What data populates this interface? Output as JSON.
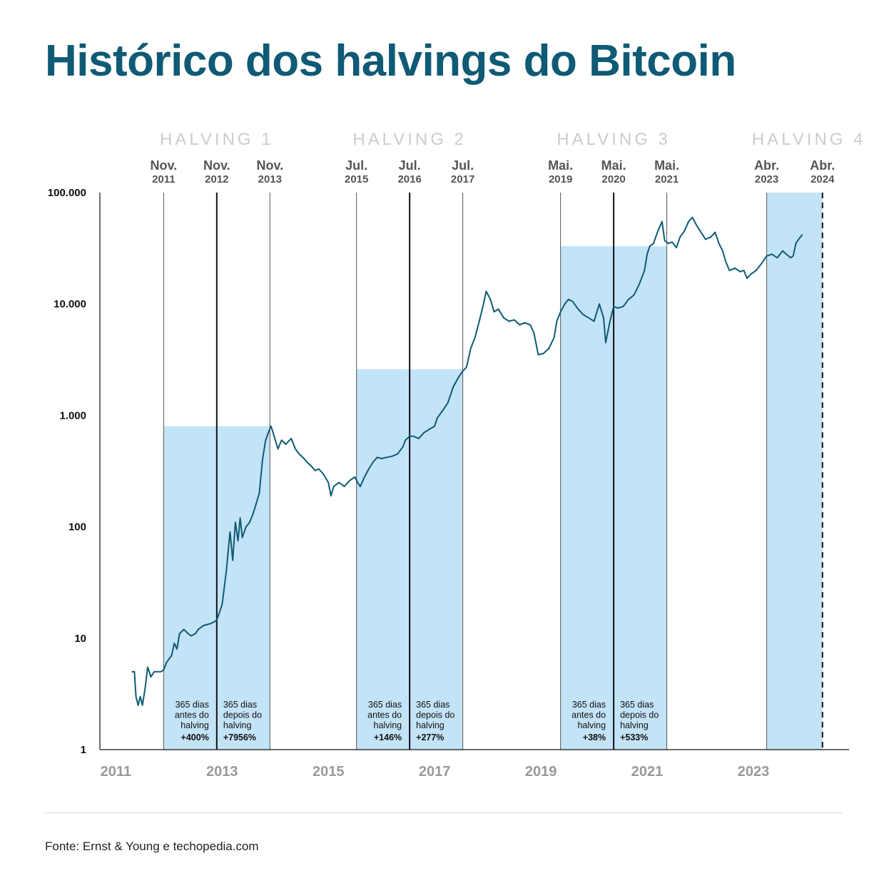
{
  "title": "Histórico dos halvings do Bitcoin",
  "source": "Fonte: Ernst & Young e techopedia.com",
  "chart_data": {
    "type": "line",
    "title": "Histórico dos halvings do Bitcoin",
    "xlabel": "",
    "ylabel": "",
    "yscale": "log",
    "ylim": [
      1,
      100000
    ],
    "xlim": [
      2010.7,
      2024.8
    ],
    "grid": false,
    "y_ticks": [
      {
        "value": 1,
        "label": "1"
      },
      {
        "value": 10,
        "label": "10"
      },
      {
        "value": 100,
        "label": "100"
      },
      {
        "value": 1000,
        "label": "1.000"
      },
      {
        "value": 10000,
        "label": "10.000"
      },
      {
        "value": 100000,
        "label": "100.000"
      }
    ],
    "x_ticks": [
      {
        "value": 2011,
        "label": "2011"
      },
      {
        "value": 2013,
        "label": "2013"
      },
      {
        "value": 2015,
        "label": "2015"
      },
      {
        "value": 2017,
        "label": "2017"
      },
      {
        "value": 2019,
        "label": "2019"
      },
      {
        "value": 2021,
        "label": "2021"
      },
      {
        "value": 2023,
        "label": "2023"
      }
    ],
    "halvings": [
      {
        "name": "HALVING 1",
        "date": 2012.9,
        "start": 2011.9,
        "end": 2013.9,
        "box_top": 800,
        "markers": [
          {
            "month": "Nov.",
            "year": "2011",
            "value": 2011.9
          },
          {
            "month": "Nov.",
            "year": "2012",
            "value": 2012.9
          },
          {
            "month": "Nov.",
            "year": "2013",
            "value": 2013.9
          }
        ],
        "before": {
          "text": [
            "365 dias",
            "antes do",
            "halving"
          ],
          "change": "+400%"
        },
        "after": {
          "text": [
            "365 dias",
            "depois do",
            "halving"
          ],
          "change": "+7956%"
        }
      },
      {
        "name": "HALVING 2",
        "date": 2016.53,
        "start": 2015.53,
        "end": 2017.53,
        "box_top": 2600,
        "markers": [
          {
            "month": "Jul.",
            "year": "2015",
            "value": 2015.53
          },
          {
            "month": "Jul.",
            "year": "2016",
            "value": 2016.53
          },
          {
            "month": "Jul.",
            "year": "2017",
            "value": 2017.53
          }
        ],
        "before": {
          "text": [
            "365 dias",
            "antes do",
            "halving"
          ],
          "change": "+146%"
        },
        "after": {
          "text": [
            "365 dias",
            "depois do",
            "halving"
          ],
          "change": "+277%"
        }
      },
      {
        "name": "HALVING 3",
        "date": 2020.37,
        "start": 2019.37,
        "end": 2021.37,
        "box_top": 33000,
        "markers": [
          {
            "month": "Mai.",
            "year": "2019",
            "value": 2019.37
          },
          {
            "month": "Mai.",
            "year": "2020",
            "value": 2020.37
          },
          {
            "month": "Mai.",
            "year": "2021",
            "value": 2021.37
          }
        ],
        "before": {
          "text": [
            "365 dias",
            "antes do",
            "halving"
          ],
          "change": "+38%"
        },
        "after": {
          "text": [
            "365 dias",
            "depois do",
            "halving"
          ],
          "change": "+533%"
        }
      },
      {
        "name": "HALVING 4",
        "date": 2024.3,
        "start": 2023.25,
        "end": 2024.3,
        "box_top": 100000,
        "markers": [
          {
            "month": "Abr.",
            "year": "2023",
            "value": 2023.25
          },
          {
            "month": "Abr.",
            "year": "2024",
            "value": 2024.3
          }
        ],
        "dashed_end": true
      }
    ],
    "series": [
      {
        "x": [
          2011.3,
          2011.35,
          2011.38,
          2011.42,
          2011.46,
          2011.5,
          2011.55,
          2011.6,
          2011.66,
          2011.72,
          2011.78,
          2011.85,
          2011.9,
          2011.95,
          2012.0,
          2012.05,
          2012.1,
          2012.15,
          2012.2,
          2012.28,
          2012.36,
          2012.42,
          2012.5,
          2012.55,
          2012.6,
          2012.65,
          2012.7,
          2012.78,
          2012.85,
          2012.9,
          2013.0,
          2013.08,
          2013.15,
          2013.2,
          2013.25,
          2013.3,
          2013.34,
          2013.38,
          2013.45,
          2013.52,
          2013.58,
          2013.64,
          2013.7,
          2013.76,
          2013.82,
          2013.87,
          2013.92,
          2013.98,
          2014.05,
          2014.12,
          2014.2,
          2014.3,
          2014.38,
          2014.45,
          2014.52,
          2014.6,
          2014.68,
          2014.75,
          2014.82,
          2014.9,
          2015.0,
          2015.05,
          2015.1,
          2015.2,
          2015.3,
          2015.4,
          2015.5,
          2015.55,
          2015.6,
          2015.68,
          2015.76,
          2015.84,
          2015.92,
          2016.0,
          2016.1,
          2016.2,
          2016.3,
          2016.4,
          2016.45,
          2016.53,
          2016.6,
          2016.7,
          2016.8,
          2016.9,
          2017.0,
          2017.05,
          2017.15,
          2017.25,
          2017.35,
          2017.45,
          2017.53,
          2017.6,
          2017.68,
          2017.76,
          2017.84,
          2017.92,
          2017.97,
          2018.05,
          2018.12,
          2018.2,
          2018.3,
          2018.4,
          2018.5,
          2018.6,
          2018.7,
          2018.8,
          2018.87,
          2018.95,
          2019.05,
          2019.15,
          2019.25,
          2019.3,
          2019.37,
          2019.45,
          2019.52,
          2019.6,
          2019.7,
          2019.8,
          2019.9,
          2020.0,
          2020.1,
          2020.18,
          2020.22,
          2020.3,
          2020.37,
          2020.45,
          2020.55,
          2020.65,
          2020.75,
          2020.85,
          2020.95,
          2021.0,
          2021.05,
          2021.12,
          2021.2,
          2021.28,
          2021.33,
          2021.4,
          2021.47,
          2021.55,
          2021.62,
          2021.7,
          2021.78,
          2021.85,
          2021.92,
          2022.0,
          2022.1,
          2022.2,
          2022.28,
          2022.35,
          2022.42,
          2022.48,
          2022.55,
          2022.65,
          2022.75,
          2022.82,
          2022.88,
          2022.95,
          2023.05,
          2023.15,
          2023.25,
          2023.35,
          2023.45,
          2023.55,
          2023.62,
          2023.7,
          2023.75,
          2023.8,
          2023.85,
          2023.92
        ],
        "y": [
          5,
          5,
          3,
          2.5,
          3,
          2.5,
          3.5,
          5.5,
          4.5,
          5,
          5,
          5,
          5.2,
          6,
          6.5,
          7,
          9,
          8,
          11,
          12,
          11,
          10.5,
          11,
          12,
          12.5,
          13,
          13.2,
          13.5,
          14,
          14.5,
          20,
          40,
          90,
          50,
          110,
          75,
          120,
          80,
          100,
          110,
          130,
          160,
          200,
          400,
          600,
          700,
          800,
          650,
          500,
          600,
          550,
          620,
          500,
          450,
          420,
          380,
          350,
          320,
          330,
          300,
          250,
          190,
          230,
          250,
          230,
          260,
          280,
          250,
          230,
          280,
          330,
          380,
          420,
          410,
          420,
          430,
          450,
          520,
          600,
          650,
          650,
          620,
          700,
          750,
          800,
          950,
          1100,
          1300,
          1800,
          2200,
          2500,
          2700,
          4000,
          5000,
          7000,
          10000,
          13000,
          11000,
          8500,
          9000,
          7500,
          7000,
          7200,
          6500,
          6800,
          6500,
          5500,
          3500,
          3600,
          4000,
          5000,
          7000,
          8500,
          10000,
          11000,
          10500,
          9000,
          8000,
          7500,
          7000,
          10000,
          7500,
          4500,
          7000,
          9500,
          9200,
          9500,
          11000,
          12000,
          15000,
          20000,
          28000,
          33000,
          35000,
          45000,
          55000,
          37000,
          35000,
          36000,
          32000,
          40000,
          45000,
          55000,
          60000,
          52000,
          45000,
          38000,
          40000,
          44000,
          35000,
          30000,
          24000,
          20000,
          21000,
          19500,
          20000,
          17000,
          18500,
          20000,
          23000,
          27000,
          28000,
          26000,
          30000,
          28000,
          26000,
          27000,
          35000,
          38000,
          42000
        ]
      }
    ]
  }
}
